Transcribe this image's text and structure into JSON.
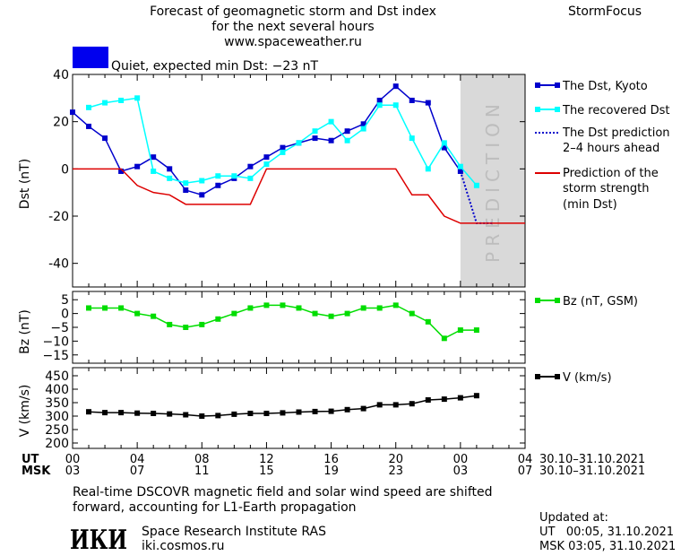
{
  "header": {
    "title_line1": "Forecast of geomagnetic storm and Dst index",
    "title_line2": "for the next several hours",
    "site": "www.spaceweather.ru",
    "brand": "StormFocus",
    "status": "Quiet, expected min Dst: −23 nT",
    "status_color": "#0000ee"
  },
  "colors": {
    "dst_kyoto": "#0000cc",
    "dst_recovered": "#00ffff",
    "dst_prediction": "#0000cc",
    "storm_strength": "#dd0000",
    "bz": "#00dd00",
    "v": "#000000",
    "prediction_zone": "#d9d9d9"
  },
  "prediction_label": "PREDICTION",
  "chart_data": [
    {
      "type": "line",
      "ylabel": "Dst (nT)",
      "ylim": [
        -50,
        40
      ],
      "yticks": [
        -40,
        -20,
        0,
        20,
        40
      ],
      "xlim": [
        0,
        28
      ],
      "prediction_start": 24,
      "series": [
        {
          "name": "The Dst, Kyoto",
          "key": "kyoto",
          "x": [
            0,
            1,
            2,
            3,
            4,
            5,
            6,
            7,
            8,
            9,
            10,
            11,
            12,
            13,
            14,
            15,
            16,
            17,
            18,
            19,
            20,
            21,
            22,
            23,
            24
          ],
          "values": [
            24,
            18,
            13,
            -1,
            1,
            5,
            0,
            -9,
            -11,
            -7,
            -4,
            1,
            5,
            9,
            11,
            13,
            12,
            16,
            19,
            29,
            35,
            29,
            28,
            9,
            -1
          ]
        },
        {
          "name": "The recovered Dst",
          "key": "recovered",
          "x": [
            1,
            2,
            3,
            4,
            5,
            6,
            7,
            8,
            9,
            10,
            11,
            12,
            13,
            14,
            15,
            16,
            17,
            18,
            19,
            20,
            21,
            22,
            23,
            24,
            25
          ],
          "values": [
            26,
            28,
            29,
            30,
            -1,
            -4,
            -6,
            -5,
            -3,
            -3,
            -4,
            2,
            7,
            11,
            16,
            20,
            12,
            17,
            27,
            27,
            13,
            0,
            11,
            1,
            -7
          ]
        },
        {
          "name": "The Dst prediction",
          "name2": "2–4 hours ahead",
          "key": "prediction",
          "x": [
            24,
            25,
            26
          ],
          "values": [
            -1,
            -23,
            -23
          ]
        },
        {
          "name": "Prediction of the",
          "name2": "storm strength",
          "name3": "(min Dst)",
          "key": "storm",
          "x": [
            0,
            3,
            4,
            5,
            6,
            7,
            8,
            9,
            10,
            11,
            12,
            13,
            14,
            15,
            16,
            17,
            18,
            19,
            20,
            21,
            22,
            23,
            24,
            25,
            26,
            27,
            28
          ],
          "values": [
            0,
            0,
            -7,
            -10,
            -11,
            -15,
            -15,
            -15,
            -15,
            -15,
            0,
            0,
            0,
            0,
            0,
            0,
            0,
            0,
            0,
            -11,
            -11,
            -20,
            -23,
            -23,
            -23,
            -23,
            -23
          ]
        }
      ]
    },
    {
      "type": "line",
      "ylabel": "Bz (nT)",
      "ylim": [
        -18,
        8
      ],
      "yticks": [
        5,
        0,
        -5,
        -10,
        -15
      ],
      "ytick_labels": [
        "5",
        "0",
        "−5",
        "−10",
        "−15"
      ],
      "xlim": [
        0,
        28
      ],
      "series": [
        {
          "name": "Bz (nT, GSM)",
          "key": "bz",
          "x": [
            1,
            2,
            3,
            4,
            5,
            6,
            7,
            8,
            9,
            10,
            11,
            12,
            13,
            14,
            15,
            16,
            17,
            18,
            19,
            20,
            21,
            22,
            23,
            24,
            25
          ],
          "values": [
            2,
            2,
            2,
            0,
            -1,
            -4,
            -5,
            -4,
            -2,
            0,
            2,
            3,
            3,
            2,
            0,
            -1,
            0,
            2,
            2,
            3,
            0,
            -3,
            -9,
            -6,
            -6
          ]
        }
      ]
    },
    {
      "type": "line",
      "ylabel": "V (km/s)",
      "ylim": [
        180,
        480
      ],
      "yticks": [
        450,
        400,
        350,
        300,
        250,
        200
      ],
      "xlim": [
        0,
        28
      ],
      "series": [
        {
          "name": "V (km/s)",
          "key": "v",
          "x": [
            1,
            2,
            3,
            4,
            5,
            6,
            7,
            8,
            9,
            10,
            11,
            12,
            13,
            14,
            15,
            16,
            17,
            18,
            19,
            20,
            21,
            22,
            23,
            24,
            25
          ],
          "values": [
            316,
            313,
            313,
            311,
            310,
            308,
            305,
            300,
            302,
            307,
            310,
            310,
            312,
            315,
            317,
            318,
            324,
            328,
            342,
            342,
            346,
            360,
            363,
            368,
            376
          ]
        }
      ]
    }
  ],
  "x_axis": {
    "ut_label": "UT",
    "msk_label": "MSK",
    "ut_ticks": [
      "00",
      "04",
      "08",
      "12",
      "16",
      "20",
      "00",
      "04"
    ],
    "msk_ticks": [
      "03",
      "07",
      "11",
      "15",
      "19",
      "23",
      "03",
      "07"
    ],
    "date_range_ut": "30.10–31.10.2021",
    "date_range_msk": "30.10–31.10.2021"
  },
  "footer": {
    "note_line1": "Real-time DSCOVR magnetic field and solar wind speed are shifted",
    "note_line2": "forward, accounting for L1-Earth propagation",
    "logo": "ИКИ",
    "institute": "Space Research Institute RAS",
    "institute_site": "iki.cosmos.ru",
    "updated_label": "Updated at:",
    "updated_ut": "UT   00:05, 31.10.2021",
    "updated_msk": "MSK 03:05, 31.10.2021"
  }
}
